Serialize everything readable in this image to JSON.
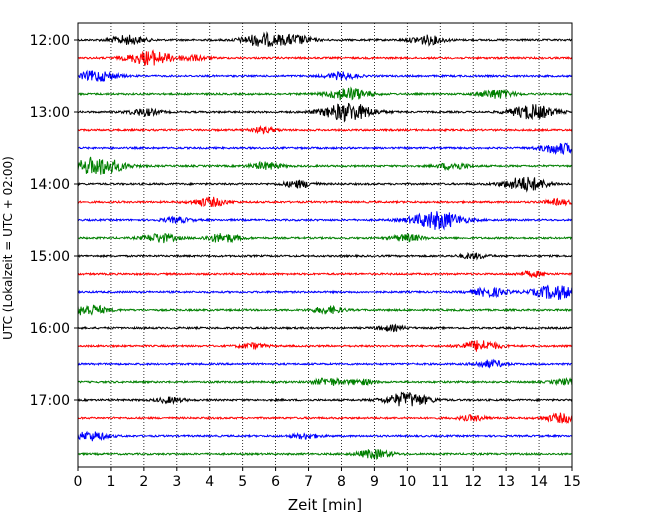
{
  "chart_data": {
    "type": "line",
    "title": "",
    "xlabel": "Zeit  [min]",
    "ylabel": "UTC (Lokalzeit = UTC + 02:00)",
    "xlim": [
      0,
      15
    ],
    "x_ticks": [
      "0",
      "1",
      "2",
      "3",
      "4",
      "5",
      "6",
      "7",
      "8",
      "9",
      "10",
      "11",
      "12",
      "13",
      "14",
      "15"
    ],
    "y_ticks": [
      "12:00",
      "13:00",
      "14:00",
      "15:00",
      "16:00",
      "17:00"
    ],
    "grid_x": true,
    "grid_style": "dotted",
    "minutes_per_trace": 15,
    "trace_start": "12:00",
    "trace_colors": [
      "#000000",
      "#ff0000",
      "#0000ff",
      "#008000"
    ],
    "series": [
      {
        "start": "12:00",
        "color": "#000000",
        "events": [
          {
            "x": 1.5,
            "a": 0.5
          },
          {
            "x": 5.6,
            "a": 0.7
          },
          {
            "x": 6.6,
            "a": 0.5
          },
          {
            "x": 10.6,
            "a": 0.5
          }
        ]
      },
      {
        "start": "12:15",
        "color": "#ff0000",
        "events": [
          {
            "x": 2.2,
            "a": 0.8
          },
          {
            "x": 3.5,
            "a": 0.3
          }
        ]
      },
      {
        "start": "12:30",
        "color": "#0000ff",
        "events": [
          {
            "x": 0.6,
            "a": 0.6
          },
          {
            "x": 8.0,
            "a": 0.4
          }
        ]
      },
      {
        "start": "12:45",
        "color": "#008000",
        "events": [
          {
            "x": 8.2,
            "a": 0.7
          },
          {
            "x": 12.7,
            "a": 0.5
          }
        ]
      },
      {
        "start": "13:00",
        "color": "#000000",
        "events": [
          {
            "x": 2.0,
            "a": 0.4
          },
          {
            "x": 8.2,
            "a": 1.0
          },
          {
            "x": 13.8,
            "a": 0.8
          }
        ]
      },
      {
        "start": "13:15",
        "color": "#ff0000",
        "events": [
          {
            "x": 5.6,
            "a": 0.3
          }
        ]
      },
      {
        "start": "13:30",
        "color": "#0000ff",
        "events": [
          {
            "x": 14.6,
            "a": 0.6
          }
        ]
      },
      {
        "start": "13:45",
        "color": "#008000",
        "events": [
          {
            "x": 0.6,
            "a": 1.0
          },
          {
            "x": 5.7,
            "a": 0.4
          },
          {
            "x": 11.4,
            "a": 0.4
          }
        ]
      },
      {
        "start": "14:00",
        "color": "#000000",
        "events": [
          {
            "x": 6.7,
            "a": 0.4
          },
          {
            "x": 13.6,
            "a": 0.8
          }
        ]
      },
      {
        "start": "14:15",
        "color": "#ff0000",
        "events": [
          {
            "x": 4.0,
            "a": 0.5
          },
          {
            "x": 14.6,
            "a": 0.3
          }
        ]
      },
      {
        "start": "14:30",
        "color": "#0000ff",
        "events": [
          {
            "x": 10.9,
            "a": 1.0
          },
          {
            "x": 3.0,
            "a": 0.3
          }
        ]
      },
      {
        "start": "14:45",
        "color": "#008000",
        "events": [
          {
            "x": 2.5,
            "a": 0.5
          },
          {
            "x": 4.4,
            "a": 0.5
          },
          {
            "x": 10.0,
            "a": 0.4
          }
        ]
      },
      {
        "start": "15:00",
        "color": "#000000",
        "events": [
          {
            "x": 12.0,
            "a": 0.3
          }
        ]
      },
      {
        "start": "15:15",
        "color": "#ff0000",
        "events": [
          {
            "x": 13.8,
            "a": 0.3
          }
        ]
      },
      {
        "start": "15:30",
        "color": "#0000ff",
        "events": [
          {
            "x": 12.5,
            "a": 0.5
          },
          {
            "x": 14.5,
            "a": 0.8
          }
        ]
      },
      {
        "start": "15:45",
        "color": "#008000",
        "events": [
          {
            "x": 0.3,
            "a": 0.6
          },
          {
            "x": 7.6,
            "a": 0.4
          }
        ]
      },
      {
        "start": "16:00",
        "color": "#000000",
        "events": [
          {
            "x": 9.5,
            "a": 0.3
          }
        ]
      },
      {
        "start": "16:15",
        "color": "#ff0000",
        "events": [
          {
            "x": 12.2,
            "a": 0.6
          },
          {
            "x": 5.3,
            "a": 0.3
          }
        ]
      },
      {
        "start": "16:30",
        "color": "#0000ff",
        "events": [
          {
            "x": 12.5,
            "a": 0.4
          }
        ]
      },
      {
        "start": "16:45",
        "color": "#008000",
        "events": [
          {
            "x": 7.6,
            "a": 0.4
          },
          {
            "x": 8.6,
            "a": 0.3
          },
          {
            "x": 14.8,
            "a": 0.3
          }
        ]
      },
      {
        "start": "17:00",
        "color": "#000000",
        "events": [
          {
            "x": 10.0,
            "a": 0.8
          },
          {
            "x": 2.8,
            "a": 0.3
          }
        ]
      },
      {
        "start": "17:15",
        "color": "#ff0000",
        "events": [
          {
            "x": 14.7,
            "a": 0.5
          },
          {
            "x": 12.0,
            "a": 0.3
          }
        ]
      },
      {
        "start": "17:30",
        "color": "#0000ff",
        "events": [
          {
            "x": 0.4,
            "a": 0.5
          },
          {
            "x": 6.9,
            "a": 0.3
          }
        ]
      },
      {
        "start": "17:45",
        "color": "#008000",
        "events": [
          {
            "x": 9.0,
            "a": 0.5
          }
        ]
      }
    ]
  }
}
